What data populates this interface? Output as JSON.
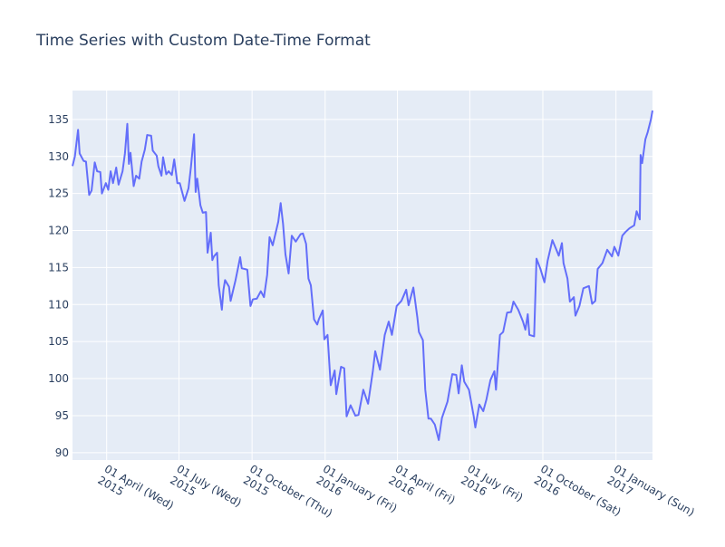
{
  "chart_data": {
    "type": "line",
    "title": "Time Series with Custom Date-Time Format",
    "x": [
      "2015-02-17",
      "2015-02-20",
      "2015-02-24",
      "2015-02-26",
      "2015-03-03",
      "2015-03-06",
      "2015-03-10",
      "2015-03-13",
      "2015-03-17",
      "2015-03-20",
      "2015-03-24",
      "2015-03-26",
      "2015-03-31",
      "2015-04-03",
      "2015-04-06",
      "2015-04-09",
      "2015-04-13",
      "2015-04-16",
      "2015-04-21",
      "2015-04-24",
      "2015-04-27",
      "2015-04-29",
      "2015-05-01",
      "2015-05-05",
      "2015-05-08",
      "2015-05-12",
      "2015-05-15",
      "2015-05-19",
      "2015-05-22",
      "2015-05-27",
      "2015-05-29",
      "2015-06-03",
      "2015-06-05",
      "2015-06-09",
      "2015-06-11",
      "2015-06-15",
      "2015-06-18",
      "2015-06-22",
      "2015-06-25",
      "2015-06-29",
      "2015-07-02",
      "2015-07-08",
      "2015-07-13",
      "2015-07-16",
      "2015-07-20",
      "2015-07-22",
      "2015-07-24",
      "2015-07-28",
      "2015-07-31",
      "2015-08-04",
      "2015-08-06",
      "2015-08-10",
      "2015-08-12",
      "2015-08-14",
      "2015-08-18",
      "2015-08-20",
      "2015-08-24",
      "2015-08-26",
      "2015-08-28",
      "2015-09-02",
      "2015-09-04",
      "2015-09-08",
      "2015-09-10",
      "2015-09-14",
      "2015-09-16",
      "2015-09-18",
      "2015-09-22",
      "2015-09-25",
      "2015-09-29",
      "2015-10-02",
      "2015-10-07",
      "2015-10-12",
      "2015-10-16",
      "2015-10-20",
      "2015-10-23",
      "2015-10-27",
      "2015-11-03",
      "2015-11-06",
      "2015-11-09",
      "2015-11-12",
      "2015-11-16",
      "2015-11-20",
      "2015-11-25",
      "2015-12-01",
      "2015-12-04",
      "2015-12-08",
      "2015-12-11",
      "2015-12-14",
      "2015-12-18",
      "2015-12-22",
      "2015-12-24",
      "2015-12-29",
      "2015-12-31",
      "2016-01-04",
      "2016-01-08",
      "2016-01-13",
      "2016-01-15",
      "2016-01-21",
      "2016-01-25",
      "2016-01-28",
      "2016-02-02",
      "2016-02-08",
      "2016-02-12",
      "2016-02-18",
      "2016-02-24",
      "2016-03-01",
      "2016-03-04",
      "2016-03-10",
      "2016-03-16",
      "2016-03-21",
      "2016-03-25",
      "2016-03-31",
      "2016-04-06",
      "2016-04-12",
      "2016-04-15",
      "2016-04-21",
      "2016-04-26",
      "2016-04-28",
      "2016-05-03",
      "2016-05-06",
      "2016-05-10",
      "2016-05-13",
      "2016-05-18",
      "2016-05-23",
      "2016-05-27",
      "2016-06-03",
      "2016-06-09",
      "2016-06-14",
      "2016-06-17",
      "2016-06-21",
      "2016-06-24",
      "2016-06-30",
      "2016-07-06",
      "2016-07-08",
      "2016-07-13",
      "2016-07-18",
      "2016-07-22",
      "2016-07-27",
      "2016-08-01",
      "2016-08-03",
      "2016-08-08",
      "2016-08-12",
      "2016-08-17",
      "2016-08-22",
      "2016-08-25",
      "2016-08-31",
      "2016-09-06",
      "2016-09-09",
      "2016-09-12",
      "2016-09-14",
      "2016-09-20",
      "2016-09-23",
      "2016-09-28",
      "2016-10-03",
      "2016-10-07",
      "2016-10-13",
      "2016-10-18",
      "2016-10-21",
      "2016-10-25",
      "2016-10-27",
      "2016-11-01",
      "2016-11-04",
      "2016-11-09",
      "2016-11-11",
      "2016-11-16",
      "2016-11-21",
      "2016-11-28",
      "2016-12-02",
      "2016-12-06",
      "2016-12-09",
      "2016-12-15",
      "2016-12-21",
      "2016-12-27",
      "2016-12-30",
      "2017-01-04",
      "2017-01-09",
      "2017-01-13",
      "2017-01-18",
      "2017-01-24",
      "2017-01-27",
      "2017-01-31",
      "2017-02-01",
      "2017-02-03",
      "2017-02-07",
      "2017-02-10",
      "2017-02-14",
      "2017-02-16"
    ],
    "series": [
      {
        "color": "#636efa",
        "values": [
          128.7,
          130.0,
          133.6,
          130.4,
          129.4,
          129.3,
          124.8,
          125.4,
          129.2,
          128.0,
          127.9,
          125.0,
          126.4,
          125.5,
          128.0,
          126.4,
          128.5,
          126.2,
          128.0,
          130.4,
          134.4,
          129.0,
          130.5,
          126.0,
          127.4,
          127.0,
          129.3,
          130.9,
          132.9,
          132.8,
          130.8,
          130.1,
          128.7,
          127.4,
          129.9,
          127.6,
          128.0,
          127.5,
          129.6,
          126.4,
          126.4,
          124.0,
          125.7,
          128.5,
          133.0,
          125.2,
          127.0,
          123.4,
          122.4,
          122.5,
          117.0,
          119.7,
          116.0,
          116.5,
          117.0,
          112.6,
          109.3,
          112.0,
          113.3,
          112.4,
          110.5,
          112.3,
          113.2,
          115.3,
          116.4,
          114.9,
          114.8,
          114.7,
          109.8,
          110.7,
          110.8,
          111.8,
          111.0,
          114.0,
          119.1,
          118.0,
          121.2,
          123.7,
          120.9,
          116.8,
          114.2,
          119.3,
          118.5,
          119.5,
          119.6,
          118.2,
          113.5,
          112.6,
          108.0,
          107.3,
          108.0,
          109.2,
          105.3,
          105.9,
          99.1,
          101.1,
          97.9,
          101.6,
          101.4,
          94.9,
          96.4,
          95.0,
          95.1,
          98.5,
          96.6,
          101.0,
          103.7,
          101.2,
          105.9,
          107.7,
          105.9,
          109.8,
          110.5,
          112.0,
          109.9,
          112.3,
          108.3,
          106.3,
          105.2,
          98.5,
          94.6,
          94.6,
          93.8,
          91.7,
          94.7,
          96.9,
          100.6,
          100.5,
          98.0,
          101.8,
          99.6,
          98.5,
          94.9,
          93.4,
          96.5,
          95.6,
          97.2,
          99.8,
          101.0,
          98.5,
          105.9,
          106.3,
          108.9,
          109.0,
          110.4,
          109.3,
          107.7,
          106.6,
          108.7,
          105.9,
          105.7,
          116.2,
          114.8,
          113.0,
          115.9,
          118.7,
          117.4,
          116.6,
          118.3,
          115.6,
          113.5,
          110.4,
          111.0,
          108.5,
          109.8,
          112.2,
          112.5,
          110.1,
          110.5,
          114.8,
          115.6,
          117.4,
          116.5,
          117.8,
          116.6,
          119.3,
          119.8,
          120.3,
          120.7,
          122.6,
          121.5,
          130.2,
          129.1,
          132.3,
          133.3,
          135.0,
          136.2
        ]
      }
    ],
    "xlim": [
      "2015-02-17",
      "2017-02-16"
    ],
    "xticks": [
      {
        "value": "2015-04-01",
        "label": "01 April (Wed)\n2015"
      },
      {
        "value": "2015-07-01",
        "label": "01 July (Wed)\n2015"
      },
      {
        "value": "2015-10-01",
        "label": "01 October (Thu)\n2015"
      },
      {
        "value": "2016-01-01",
        "label": "01 January (Fri)\n2016"
      },
      {
        "value": "2016-04-01",
        "label": "01 April (Fri)\n2016"
      },
      {
        "value": "2016-07-01",
        "label": "01 July (Fri)\n2016"
      },
      {
        "value": "2016-10-01",
        "label": "01 October (Sat)\n2016"
      },
      {
        "value": "2017-01-01",
        "label": "01 January (Sun)\n2017"
      }
    ],
    "ylim": [
      89.0,
      138.9
    ],
    "yticks": [
      90,
      95,
      100,
      105,
      110,
      115,
      120,
      125,
      130,
      135
    ],
    "grid": true
  }
}
